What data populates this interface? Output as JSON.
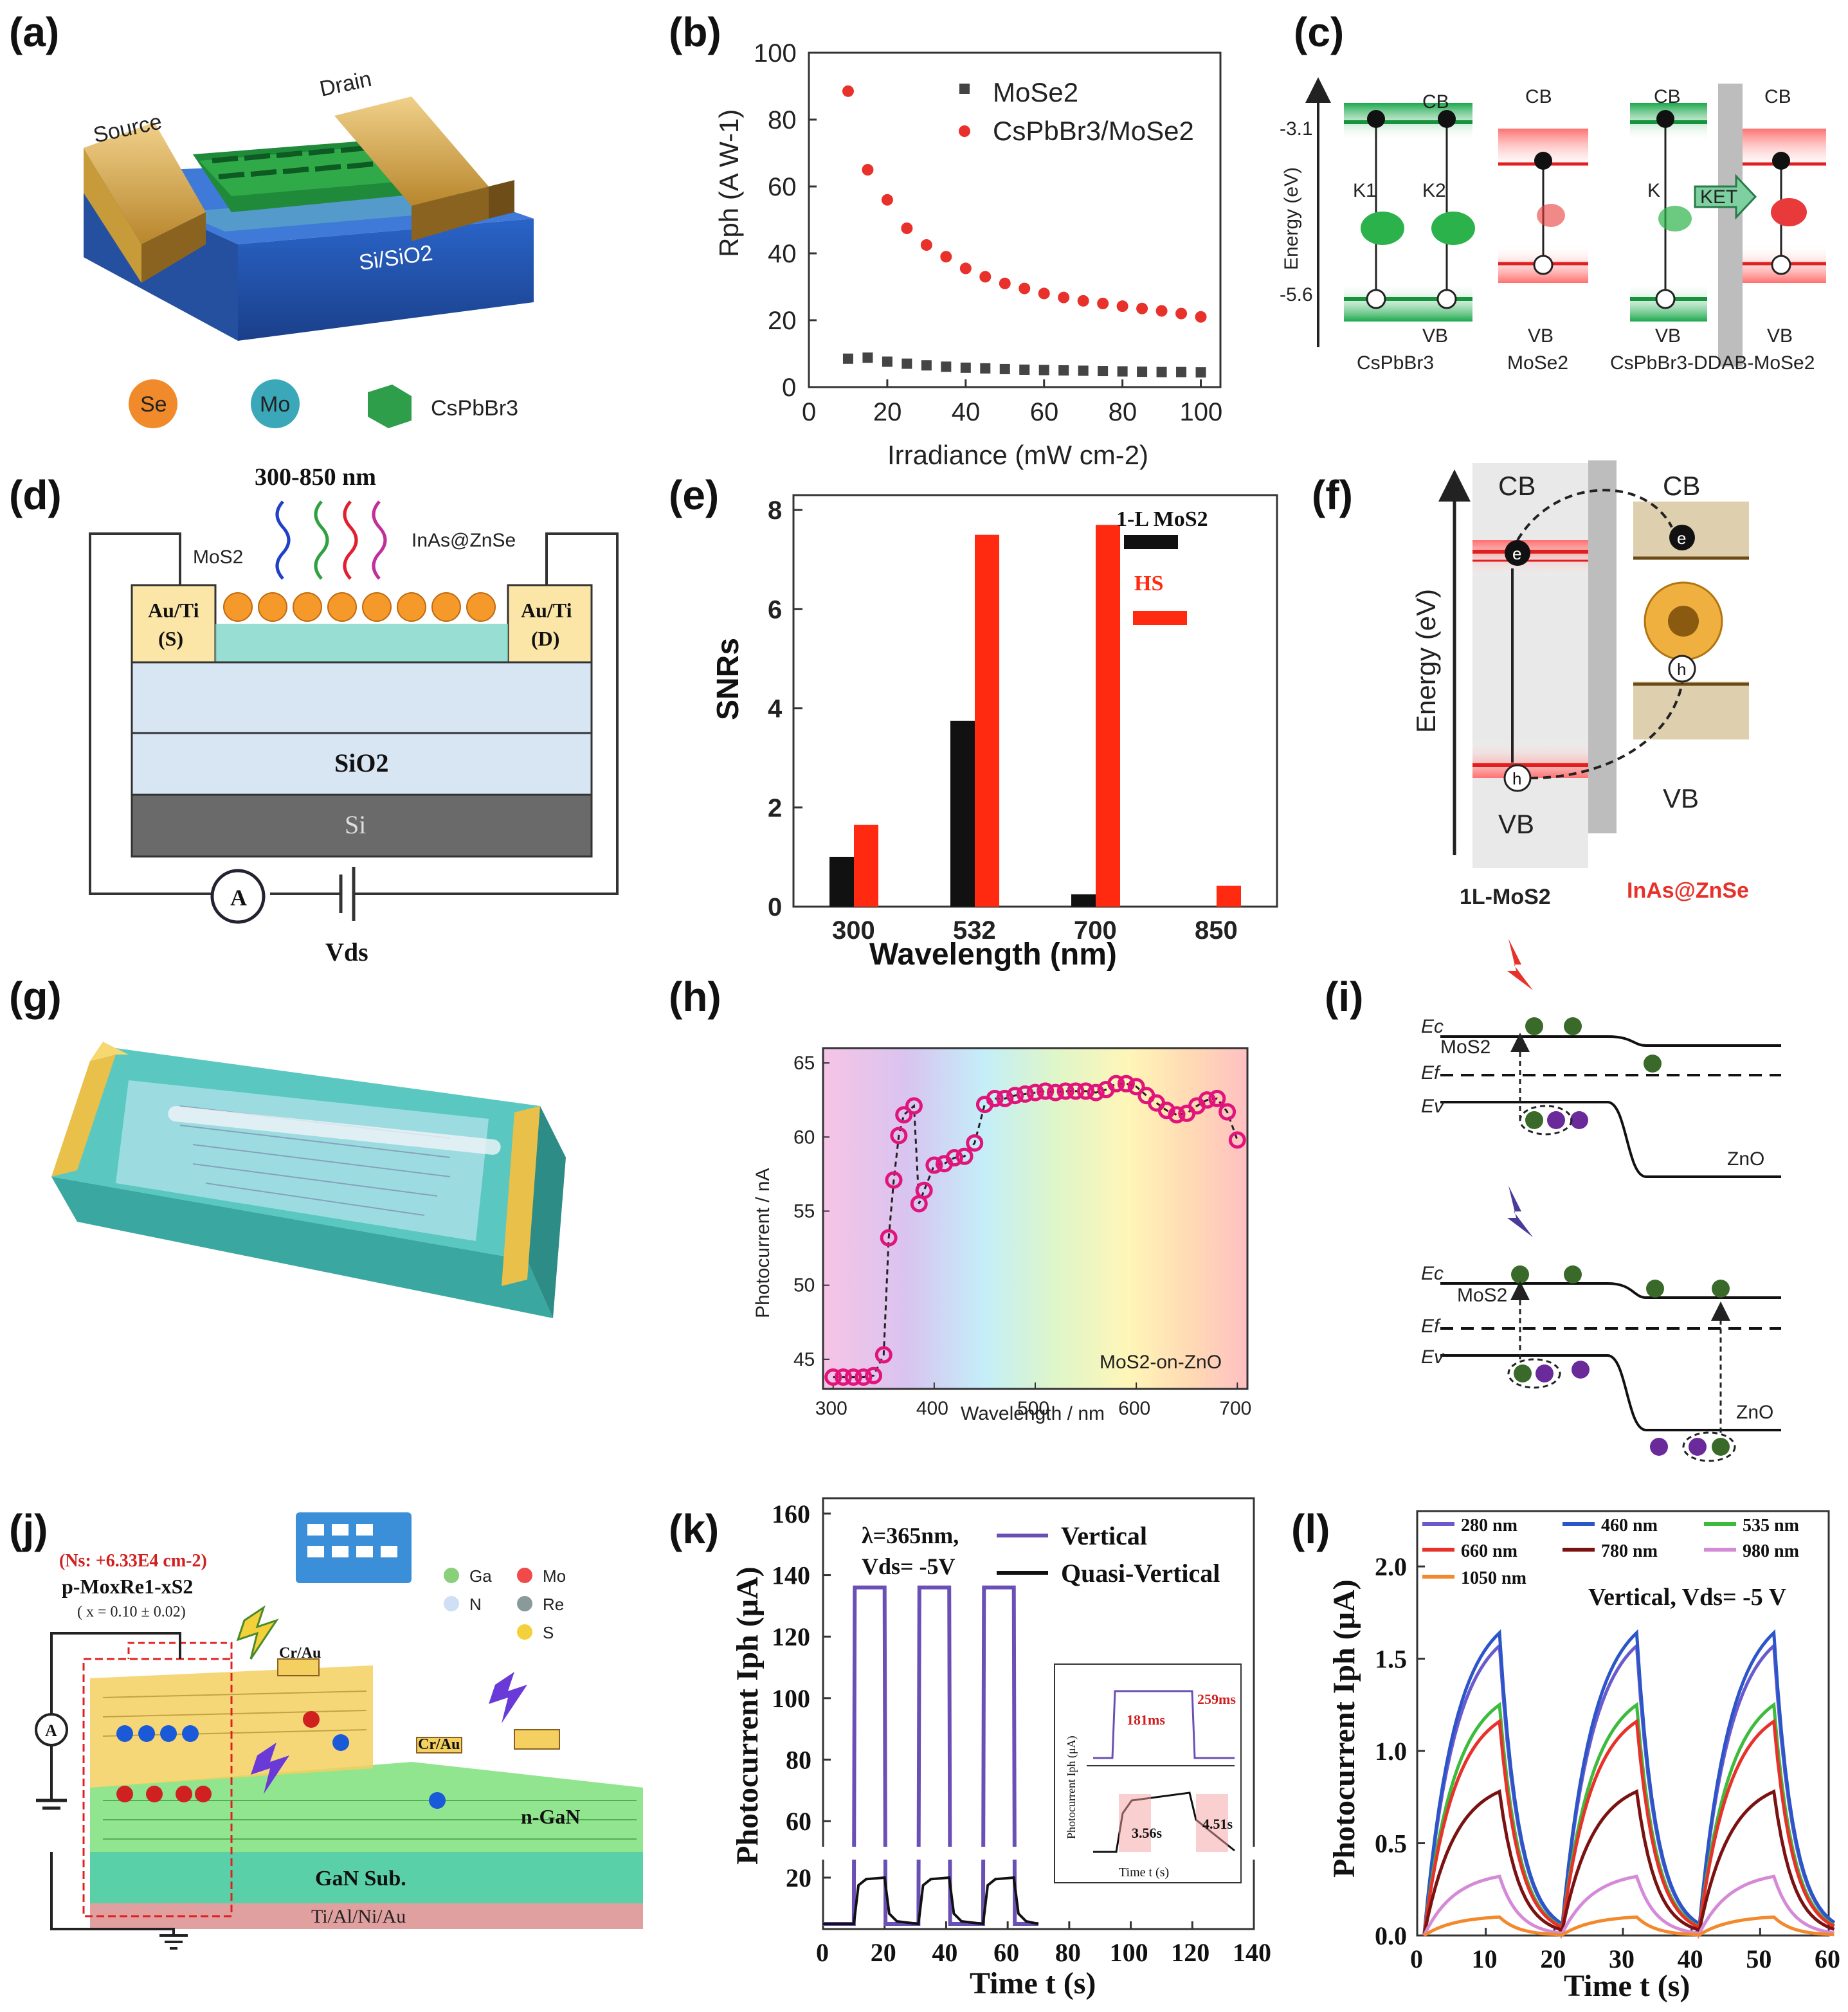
{
  "panels": {
    "a": "(a)",
    "b": "(b)",
    "c": "(c)",
    "d": "(d)",
    "e": "(e)",
    "f": "(f)",
    "g": "(g)",
    "h": "(h)",
    "i": "(i)",
    "j": "(j)",
    "k": "(k)",
    "l": "(l)"
  },
  "a": {
    "drain": "Drain",
    "source": "Source",
    "substrate": "Si/SiO2",
    "legend": [
      "Se",
      "Mo",
      "CsPbBr3"
    ]
  },
  "b": {
    "chart_data": {
      "type": "scatter",
      "xlabel": "Irradiance (mW cm-2)",
      "ylabel": "Rph (A W-1)",
      "xlim": [
        0,
        105
      ],
      "ylim": [
        0,
        100
      ],
      "xticks": [
        0,
        20,
        40,
        60,
        80,
        100
      ],
      "yticks": [
        0,
        20,
        40,
        60,
        80,
        100
      ],
      "series": [
        {
          "name": "MoSe2",
          "color": "#444444",
          "marker": "square",
          "x": [
            10,
            15,
            20,
            25,
            30,
            35,
            40,
            45,
            50,
            55,
            60,
            65,
            70,
            75,
            80,
            85,
            90,
            95,
            100
          ],
          "y": [
            8.5,
            8.8,
            7.6,
            7,
            6.5,
            6.1,
            5.8,
            5.6,
            5.4,
            5.2,
            5.1,
            5,
            4.9,
            4.8,
            4.7,
            4.6,
            4.5,
            4.5,
            4.4
          ]
        },
        {
          "name": "CsPbBr3/MoSe2",
          "color": "#e8312a",
          "marker": "circle",
          "x": [
            10,
            15,
            20,
            25,
            30,
            35,
            40,
            45,
            50,
            55,
            60,
            65,
            70,
            75,
            80,
            85,
            90,
            95,
            100
          ],
          "y": [
            88.5,
            65,
            56,
            47.5,
            42.5,
            39,
            35.5,
            33,
            31,
            29.5,
            28,
            26.8,
            25.8,
            25,
            24.2,
            23.5,
            22.8,
            22,
            21
          ]
        }
      ]
    }
  },
  "c": {
    "cb": "CB",
    "vb": "VB",
    "e1": "-3.1",
    "e2": "-5.6",
    "ylabel": "Energy (eV)",
    "k1": "K1",
    "k2": "K2",
    "k": "K",
    "ket": "KET",
    "names": [
      "CsPbBr3",
      "MoSe2",
      "CsPbBr3-DDAB-MoSe2"
    ]
  },
  "d": {
    "range": "300-850 nm",
    "mos2": "MoS2",
    "qd": "InAs@ZnSe",
    "au_s": "Au/Ti",
    "s": "(S)",
    "au_d": "Au/Ti",
    "dr": "(D)",
    "sio2": "SiO2",
    "si": "Si",
    "amp": "A",
    "vds": "Vds"
  },
  "e": {
    "chart_data": {
      "type": "bar",
      "categories": [
        "300",
        "532",
        "700",
        "850"
      ],
      "xlabel": "Wavelength (nm)",
      "ylabel": "SNRs",
      "ylim": [
        0,
        8.3
      ],
      "yticks": [
        0,
        2,
        4,
        6,
        8
      ],
      "series": [
        {
          "name": "1-L MoS2",
          "color": "#111111",
          "values": [
            1.0,
            3.75,
            0.25,
            0
          ]
        },
        {
          "name": "HS",
          "color": "#ff2a10",
          "values": [
            1.65,
            7.5,
            7.7,
            0.42
          ]
        }
      ]
    }
  },
  "f": {
    "cb1": "CB",
    "cb2": "CB",
    "vb1": "VB",
    "vb2": "VB",
    "e": "e",
    "h": "h",
    "ylabel": "Energy (eV)",
    "n1": "1L-MoS2",
    "n2": "InAs@ZnSe"
  },
  "h": {
    "chart_data": {
      "type": "line",
      "xlabel": "Wavelength / nm",
      "ylabel": "Photocurrent / nA",
      "annotation": "MoS2-on-ZnO",
      "xlim": [
        290,
        710
      ],
      "ylim": [
        43,
        66
      ],
      "xticks": [
        300,
        400,
        500,
        600,
        700
      ],
      "yticks": [
        45,
        50,
        55,
        60,
        65
      ],
      "color": "#e0147a",
      "x": [
        300,
        310,
        320,
        330,
        340,
        350,
        355,
        360,
        365,
        370,
        380,
        385,
        390,
        400,
        410,
        420,
        430,
        440,
        450,
        460,
        470,
        480,
        490,
        500,
        510,
        520,
        530,
        540,
        550,
        560,
        570,
        580,
        590,
        600,
        610,
        620,
        630,
        640,
        650,
        660,
        670,
        680,
        690,
        700
      ],
      "y": [
        43.8,
        43.8,
        43.8,
        43.8,
        43.9,
        45.3,
        53.2,
        57.1,
        60.1,
        61.5,
        62.1,
        55.5,
        56.4,
        58.1,
        58.2,
        58.6,
        58.7,
        59.6,
        62.2,
        62.6,
        62.6,
        62.8,
        62.9,
        63,
        63.1,
        63,
        63.1,
        63.1,
        63.1,
        63,
        63.2,
        63.6,
        63.6,
        63.4,
        62.8,
        62.3,
        61.8,
        61.5,
        61.6,
        62.1,
        62.5,
        62.6,
        61.7,
        59.8
      ]
    }
  },
  "i": {
    "ec": "Ec",
    "ef": "Ef",
    "ev": "Ev",
    "mos2": "MoS2",
    "zno": "ZnO"
  },
  "j": {
    "ns": "(Ns: +6.33E4 cm-2)",
    "formula": "p-MoxRe1-xS2",
    "x": "( x = 0.10 ± 0.02)",
    "legend": [
      "Ga",
      "Mo",
      "N",
      "Re",
      "S"
    ],
    "cr1": "Cr/Au",
    "cr2": "Cr/Au",
    "ngan": "n-GaN",
    "sub": "GaN Sub.",
    "met": "Ti/Al/Ni/Au",
    "amp": "A"
  },
  "k": {
    "chart_data": {
      "type": "line",
      "xlabel": "Time t (s)",
      "ylabel": "Photocurrent Iph (μA)",
      "xlim": [
        0,
        140
      ],
      "xticks": [
        0,
        20,
        40,
        60,
        80,
        100,
        120,
        140
      ],
      "yticks_upper": [
        60,
        80,
        100,
        120,
        140,
        160
      ],
      "yticks_lower": [
        20
      ],
      "cond1": "λ=365nm,",
      "cond2": "Vds= -5V",
      "series": [
        {
          "name": "Vertical",
          "color": "#6a4fb5",
          "on": [
            10,
            31,
            52
          ],
          "off": [
            20,
            41,
            62
          ],
          "high": 136,
          "low": 2
        },
        {
          "name": "Quasi-Vertical",
          "color": "#111111",
          "on": [
            10,
            31,
            52
          ],
          "off": [
            20,
            41,
            62
          ],
          "high": 20,
          "low": 2
        }
      ],
      "inset": {
        "rise": "181ms",
        "fall": "259ms",
        "rise2": "3.56s",
        "fall2": "4.51s",
        "xlabel": "Time t (s)",
        "ylabel": "Photocurrent Iph (μA)"
      }
    }
  },
  "l": {
    "chart_data": {
      "type": "line",
      "xlabel": "Time t (s)",
      "ylabel": "Photocurrent Iph (μA)",
      "xlim": [
        0,
        60
      ],
      "ylim": [
        0,
        2.3
      ],
      "xticks": [
        0,
        10,
        20,
        30,
        40,
        50,
        60
      ],
      "yticks": [
        0.0,
        0.5,
        1.0,
        1.5,
        2.0
      ],
      "condition": "Vertical,    Vds= -5 V",
      "series": [
        {
          "name": "280 nm",
          "color": "#6a5acd",
          "peak": 1.57
        },
        {
          "name": "460 nm",
          "color": "#2b55c8",
          "peak": 1.64
        },
        {
          "name": "535 nm",
          "color": "#3dbb3d",
          "peak": 1.25
        },
        {
          "name": "660 nm",
          "color": "#e8312a",
          "peak": 1.16
        },
        {
          "name": "780 nm",
          "color": "#7b1212",
          "peak": 0.78
        },
        {
          "name": "980 nm",
          "color": "#d58ad8",
          "peak": 0.32
        },
        {
          "name": "1050 nm",
          "color": "#f2892c",
          "peak": 0.1
        }
      ]
    }
  }
}
